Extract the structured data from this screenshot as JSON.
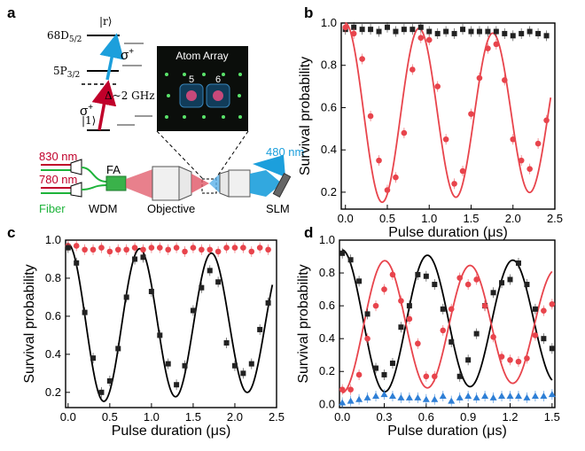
{
  "figure": {
    "panel_labels": [
      "a",
      "b",
      "c",
      "d"
    ],
    "schematic": {
      "atom_array_title": "Atom Array",
      "site_labels": [
        "5",
        "6"
      ],
      "levels": {
        "rydberg": "68D",
        "rydberg_sub": "5/2",
        "rydberg_ket": "|r⟩",
        "intermediate": "5P",
        "intermediate_sub": "3/2",
        "ground_ket": "|1⟩",
        "detuning": "Δ~2 GHz",
        "sigma_upper": "σ",
        "sigma_lower": "σ",
        "sigma_sup": "+"
      },
      "labels": {
        "l830": "830 nm",
        "l780": "780 nm",
        "fiber": "Fiber",
        "wdm": "WDM",
        "fa": "FA",
        "objective": "Objective",
        "l480": "480 nm",
        "slm": "SLM"
      },
      "colors": {
        "l830": "#c0002a",
        "l780": "#c0002a",
        "fiber": "#1db33a",
        "l480": "#1c9fdc",
        "sigma_upper": "#1c9fdc",
        "sigma_lower": "#c0002a"
      }
    }
  },
  "chart_data": [
    {
      "panel": "b",
      "type": "scatter",
      "xlabel": "Pulse duration (μs)",
      "ylabel": "Survival probability",
      "xlim": [
        -0.05,
        2.5
      ],
      "ylim": [
        0.12,
        1.0
      ],
      "xticks": [
        "0.0",
        "0.5",
        "1.0",
        "1.5",
        "2.0",
        "2.5"
      ],
      "yticks": [
        "0.2",
        "0.4",
        "0.6",
        "0.8",
        "1.0"
      ],
      "series": [
        {
          "color": "#222222",
          "marker": "square",
          "x": [
            0.0,
            0.1,
            0.2,
            0.3,
            0.4,
            0.5,
            0.6,
            0.7,
            0.8,
            0.9,
            1.0,
            1.1,
            1.2,
            1.3,
            1.4,
            1.5,
            1.6,
            1.7,
            1.8,
            1.9,
            2.0,
            2.1,
            2.2,
            2.3,
            2.4
          ],
          "y": [
            0.97,
            0.98,
            0.97,
            0.97,
            0.96,
            0.98,
            0.96,
            0.97,
            0.97,
            0.98,
            0.96,
            0.95,
            0.96,
            0.95,
            0.97,
            0.96,
            0.96,
            0.96,
            0.96,
            0.95,
            0.94,
            0.95,
            0.96,
            0.95,
            0.94
          ]
        },
        {
          "color": "#e8444c",
          "marker": "circle",
          "x": [
            0.0,
            0.1,
            0.2,
            0.3,
            0.4,
            0.5,
            0.6,
            0.7,
            0.8,
            0.9,
            1.0,
            1.1,
            1.2,
            1.3,
            1.4,
            1.5,
            1.6,
            1.7,
            1.8,
            1.9,
            2.0,
            2.1,
            2.2,
            2.3,
            2.4
          ],
          "y": [
            0.98,
            0.95,
            0.83,
            0.56,
            0.35,
            0.21,
            0.27,
            0.48,
            0.78,
            0.93,
            0.92,
            0.7,
            0.45,
            0.24,
            0.3,
            0.57,
            0.74,
            0.88,
            0.9,
            0.73,
            0.45,
            0.35,
            0.31,
            0.43,
            0.54
          ]
        }
      ],
      "fit": {
        "color": "#e8444c",
        "model": "damped_cosine",
        "mean": 0.57,
        "amplitude": 0.43,
        "period_us": 0.88,
        "decay_us": 15
      }
    },
    {
      "panel": "c",
      "type": "scatter",
      "xlabel": "Pulse duration (μs)",
      "ylabel": "Survival probability",
      "xlim": [
        -0.03,
        2.5
      ],
      "ylim": [
        0.12,
        1.0
      ],
      "xticks": [
        "0.0",
        "0.5",
        "1.0",
        "1.5",
        "2.0",
        "2.5"
      ],
      "yticks": [
        "0.2",
        "0.4",
        "0.6",
        "0.8",
        "1.0"
      ],
      "series": [
        {
          "color": "#e8444c",
          "marker": "circle",
          "x": [
            0.0,
            0.1,
            0.2,
            0.3,
            0.4,
            0.5,
            0.6,
            0.7,
            0.8,
            0.9,
            1.0,
            1.1,
            1.2,
            1.3,
            1.4,
            1.5,
            1.6,
            1.7,
            1.8,
            1.9,
            2.0,
            2.1,
            2.2,
            2.3,
            2.4
          ],
          "y": [
            0.97,
            0.97,
            0.95,
            0.95,
            0.96,
            0.94,
            0.95,
            0.95,
            0.96,
            0.95,
            0.96,
            0.96,
            0.95,
            0.96,
            0.94,
            0.96,
            0.95,
            0.95,
            0.94,
            0.96,
            0.96,
            0.96,
            0.94,
            0.96,
            0.95
          ]
        },
        {
          "color": "#222222",
          "marker": "square",
          "x": [
            0.0,
            0.1,
            0.2,
            0.3,
            0.4,
            0.5,
            0.6,
            0.7,
            0.8,
            0.9,
            1.0,
            1.1,
            1.2,
            1.3,
            1.4,
            1.5,
            1.6,
            1.7,
            1.8,
            1.9,
            2.0,
            2.1,
            2.2,
            2.3,
            2.4
          ],
          "y": [
            0.96,
            0.88,
            0.62,
            0.38,
            0.2,
            0.26,
            0.43,
            0.7,
            0.9,
            0.91,
            0.73,
            0.5,
            0.35,
            0.24,
            0.34,
            0.63,
            0.75,
            0.84,
            0.78,
            0.46,
            0.34,
            0.3,
            0.35,
            0.53,
            0.67
          ]
        }
      ],
      "fit": {
        "color": "#000000",
        "model": "damped_cosine",
        "mean": 0.56,
        "amplitude": 0.42,
        "period_us": 0.86,
        "decay_us": 14
      }
    },
    {
      "panel": "d",
      "type": "scatter",
      "xlabel": "Pulse duration (μs)",
      "ylabel": "Survival probability",
      "xlim": [
        -0.02,
        1.52
      ],
      "ylim": [
        -0.02,
        1.0
      ],
      "xticks": [
        "0.0",
        "0.3",
        "0.6",
        "0.9",
        "1.2",
        "1.5"
      ],
      "yticks": [
        "0.0",
        "0.2",
        "0.4",
        "0.6",
        "0.8",
        "1.0"
      ],
      "series": [
        {
          "color": "#222222",
          "marker": "square",
          "x": [
            0.0,
            0.06,
            0.12,
            0.18,
            0.24,
            0.3,
            0.36,
            0.42,
            0.48,
            0.54,
            0.6,
            0.66,
            0.72,
            0.78,
            0.84,
            0.9,
            0.96,
            1.02,
            1.08,
            1.14,
            1.2,
            1.26,
            1.32,
            1.38,
            1.44,
            1.5
          ],
          "y": [
            0.92,
            0.88,
            0.75,
            0.55,
            0.22,
            0.18,
            0.25,
            0.47,
            0.6,
            0.79,
            0.78,
            0.73,
            0.58,
            0.38,
            0.17,
            0.27,
            0.43,
            0.6,
            0.68,
            0.74,
            0.76,
            0.86,
            0.73,
            0.58,
            0.4,
            0.34
          ]
        },
        {
          "color": "#e8444c",
          "marker": "circle",
          "x": [
            0.0,
            0.06,
            0.12,
            0.18,
            0.24,
            0.3,
            0.36,
            0.42,
            0.48,
            0.54,
            0.6,
            0.66,
            0.72,
            0.78,
            0.84,
            0.9,
            0.96,
            1.02,
            1.08,
            1.14,
            1.2,
            1.26,
            1.32,
            1.38,
            1.44,
            1.5
          ],
          "y": [
            0.09,
            0.09,
            0.18,
            0.4,
            0.6,
            0.7,
            0.79,
            0.63,
            0.52,
            0.37,
            0.17,
            0.17,
            0.45,
            0.58,
            0.77,
            0.73,
            0.76,
            0.6,
            0.41,
            0.29,
            0.27,
            0.26,
            0.28,
            0.42,
            0.57,
            0.61
          ]
        },
        {
          "color": "#2e7fd6",
          "marker": "triangle",
          "x": [
            0.0,
            0.06,
            0.12,
            0.18,
            0.24,
            0.3,
            0.36,
            0.42,
            0.48,
            0.54,
            0.6,
            0.66,
            0.72,
            0.78,
            0.84,
            0.9,
            0.96,
            1.02,
            1.08,
            1.14,
            1.2,
            1.26,
            1.32,
            1.38,
            1.44,
            1.5
          ],
          "y": [
            0.01,
            0.02,
            0.03,
            0.04,
            0.05,
            0.06,
            0.05,
            0.04,
            0.04,
            0.04,
            0.03,
            0.03,
            0.05,
            0.02,
            0.04,
            0.05,
            0.04,
            0.05,
            0.04,
            0.05,
            0.05,
            0.05,
            0.04,
            0.05,
            0.05,
            0.06
          ]
        }
      ],
      "fits": [
        {
          "color": "#000000",
          "model": "damped_cosine",
          "mean": 0.5,
          "amplitude": 0.44,
          "period_us": 0.61,
          "phase": 0,
          "decay_us": 8
        },
        {
          "color": "#e8444c",
          "model": "damped_cosine",
          "mean": 0.48,
          "amplitude": -0.41,
          "period_us": 0.61,
          "phase": 0,
          "decay_us": 8
        }
      ]
    }
  ]
}
